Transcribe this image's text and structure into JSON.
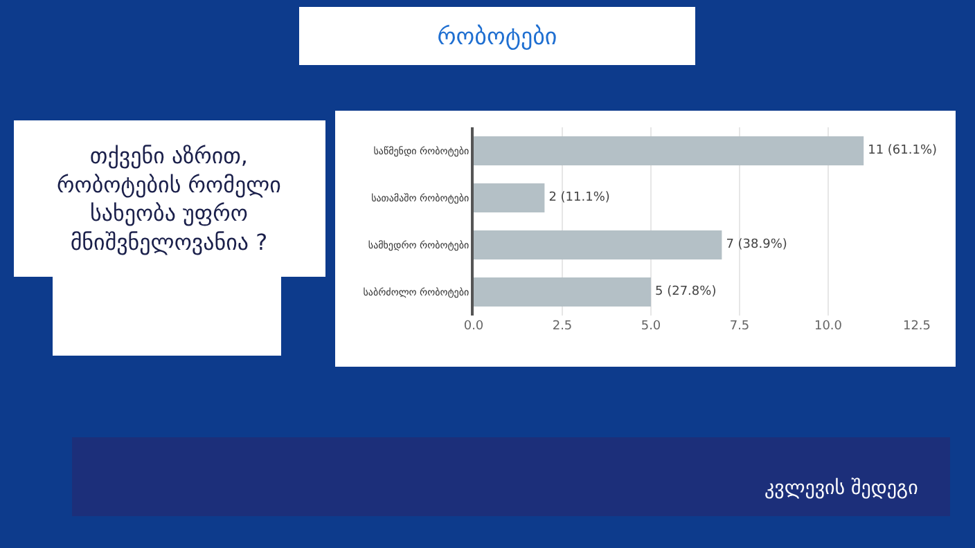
{
  "chart_data": {
    "type": "bar",
    "orientation": "horizontal",
    "title": "რობოტები",
    "subtitle": "თქვენი აზრით, რობოტების რომელი სახეობა უფრო მნიშვნელოვანია ?",
    "categories": [
      "საწმენდი რობოტები",
      "სათამაშო რობოტები",
      "სამხედრო რობოტები",
      "საბრძოლო რობოტები"
    ],
    "values": [
      11,
      2,
      7,
      5
    ],
    "color": "#b4c0c6",
    "value_labels": [
      "11 (61.1%)",
      "2 (11.1%)",
      "7 (38.9%)",
      "5 (27.8%)"
    ],
    "xlim": [
      0,
      12.5
    ],
    "xticks": [
      {
        "value": 0,
        "label": "0.0"
      },
      {
        "value": 2.5,
        "label": "2.5"
      },
      {
        "value": 5,
        "label": "5.0"
      },
      {
        "value": 7.5,
        "label": "7.5"
      },
      {
        "value": 10,
        "label": "10.0"
      },
      {
        "value": 12.5,
        "label": "12.5"
      }
    ],
    "grid": "x",
    "legend": false,
    "annotations": [
      "კვლევის შედეგი"
    ]
  }
}
